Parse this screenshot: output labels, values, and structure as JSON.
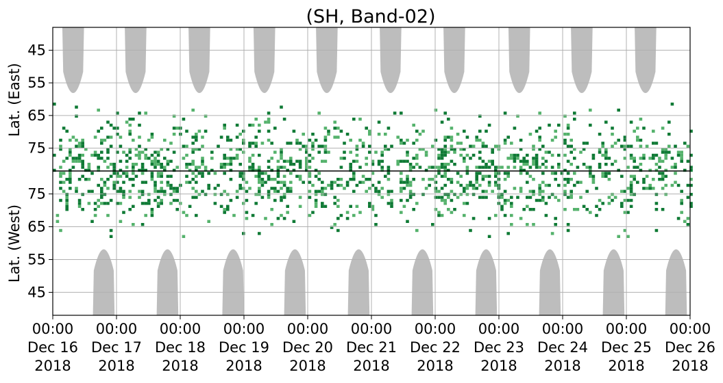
{
  "chart_data": {
    "type": "heatmap",
    "title": "(SH, Band-02)",
    "ylabel_top": "Lat. (East)",
    "ylabel_bottom": "Lat. (West)",
    "xlim": [
      "2018-12-16 00:00",
      "2018-12-26 00:00"
    ],
    "x_ticks": [
      {
        "time": "00:00",
        "date": "Dec 16",
        "year": "2018"
      },
      {
        "time": "00:00",
        "date": "Dec 17",
        "year": "2018"
      },
      {
        "time": "00:00",
        "date": "Dec 18",
        "year": "2018"
      },
      {
        "time": "00:00",
        "date": "Dec 19",
        "year": "2018"
      },
      {
        "time": "00:00",
        "date": "Dec 20",
        "year": "2018"
      },
      {
        "time": "00:00",
        "date": "Dec 21",
        "year": "2018"
      },
      {
        "time": "00:00",
        "date": "Dec 22",
        "year": "2018"
      },
      {
        "time": "00:00",
        "date": "Dec 23",
        "year": "2018"
      },
      {
        "time": "00:00",
        "date": "Dec 24",
        "year": "2018"
      },
      {
        "time": "00:00",
        "date": "Dec 25",
        "year": "2018"
      },
      {
        "time": "00:00",
        "date": "Dec 26",
        "year": "2018"
      }
    ],
    "y_ticks_east": [
      "45",
      "55",
      "65",
      "75"
    ],
    "y_ticks_west": [
      "75",
      "65",
      "55",
      "45"
    ],
    "lat_range": [
      38,
      82
    ],
    "grid": true,
    "colors": {
      "dark": "#0f7a35",
      "light": "#55b26c",
      "sun": "#bdbdbd",
      "divider": "#000000"
    },
    "sunlit_regions": {
      "east_center_day": [
        0.32,
        1.3,
        2.3,
        3.32,
        4.3,
        5.3,
        6.3,
        7.32,
        8.3,
        9.3
      ],
      "west_center_day": [
        0.8,
        1.8,
        2.83,
        3.8,
        4.8,
        5.8,
        6.8,
        7.8,
        8.8,
        9.78
      ],
      "edge_lat": 60,
      "half_width_days": 0.17
    },
    "activity_profile": {
      "day": [
        0,
        0.5,
        1,
        1.4,
        2,
        2.5,
        3,
        3.5,
        4,
        4.5,
        5,
        5.5,
        6,
        6.5,
        7,
        7.5,
        8,
        8.5,
        9,
        9.5,
        10
      ],
      "intensity": [
        0.75,
        0.7,
        0.85,
        0.9,
        0.8,
        0.55,
        0.75,
        0.8,
        0.7,
        0.75,
        0.6,
        0.7,
        0.9,
        0.85,
        0.8,
        0.7,
        0.85,
        0.5,
        0.6,
        0.7,
        0.65
      ]
    }
  }
}
